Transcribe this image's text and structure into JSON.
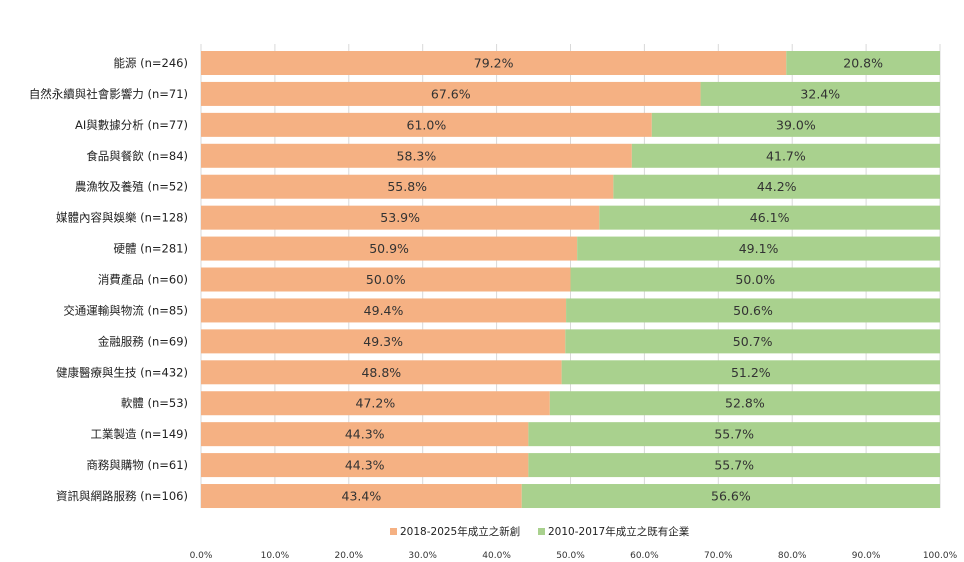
{
  "chart_data": {
    "type": "bar",
    "orientation": "horizontal",
    "stacked": true,
    "normalized": true,
    "title": "",
    "xlabel": "",
    "ylabel": "",
    "xlim": [
      0,
      100
    ],
    "x_ticks": [
      "0.0%",
      "10.0%",
      "20.0%",
      "30.0%",
      "40.0%",
      "50.0%",
      "60.0%",
      "70.0%",
      "80.0%",
      "90.0%",
      "100.0%"
    ],
    "grid": true,
    "legend_position": "bottom",
    "categories": [
      "能源 (n=246)",
      "自然永續與社會影響力 (n=71)",
      "AI與數據分析 (n=77)",
      "食品與餐飲 (n=84)",
      "農漁牧及養殖 (n=52)",
      "媒體內容與娛樂 (n=128)",
      "硬體 (n=281)",
      "消費產品 (n=60)",
      "交通運輸與物流 (n=85)",
      "金融服務 (n=69)",
      "健康醫療與生技 (n=432)",
      "軟體 (n=53)",
      "工業製造 (n=149)",
      "商務與購物 (n=61)",
      "資訊與網路服務 (n=106)"
    ],
    "series": [
      {
        "name": "2018-2025年成立之新創",
        "color": "#f5b183",
        "values": [
          79.2,
          67.6,
          61.0,
          58.3,
          55.8,
          53.9,
          50.9,
          50.0,
          49.4,
          49.3,
          48.8,
          47.2,
          44.3,
          44.3,
          43.4
        ],
        "labels": [
          "79.2%",
          "67.6%",
          "61.0%",
          "58.3%",
          "55.8%",
          "53.9%",
          "50.9%",
          "50.0%",
          "49.4%",
          "49.3%",
          "48.8%",
          "47.2%",
          "44.3%",
          "44.3%",
          "43.4%"
        ]
      },
      {
        "name": "2010-2017年成立之既有企業",
        "color": "#a9d18e",
        "values": [
          20.8,
          32.4,
          39.0,
          41.7,
          44.2,
          46.1,
          49.1,
          50.0,
          50.6,
          50.7,
          51.2,
          52.8,
          55.7,
          55.7,
          56.6
        ],
        "labels": [
          "20.8%",
          "32.4%",
          "39.0%",
          "41.7%",
          "44.2%",
          "46.1%",
          "49.1%",
          "50.0%",
          "50.6%",
          "50.7%",
          "51.2%",
          "52.8%",
          "55.7%",
          "55.7%",
          "56.6%"
        ]
      }
    ]
  }
}
